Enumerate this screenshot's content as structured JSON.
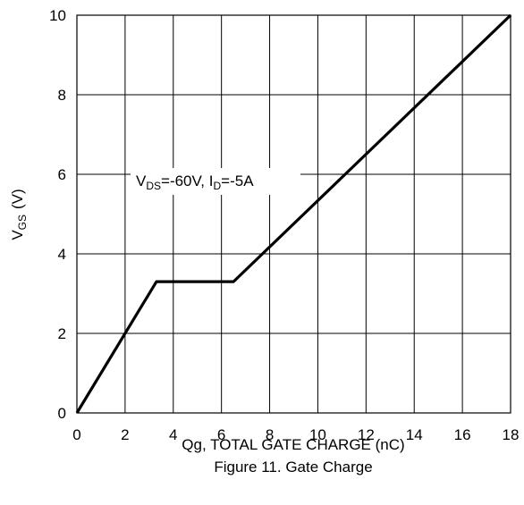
{
  "chart_data": {
    "type": "line",
    "caption": "Figure 11. Gate Charge",
    "xlabel": "Qg, TOTAL GATE CHARGE (nC)",
    "ylabel": {
      "main": "V",
      "sub": "GS",
      "unit": "(V)"
    },
    "annotation": {
      "v": "V",
      "v_sub": "DS",
      "v_val": "=-60V, ",
      "i": "I",
      "i_sub": "D",
      "i_val": "=-5A"
    },
    "xlim": [
      0,
      18
    ],
    "ylim": [
      0,
      10
    ],
    "x_ticks": [
      0,
      2,
      4,
      6,
      8,
      10,
      12,
      14,
      16,
      18
    ],
    "y_ticks": [
      0,
      2,
      4,
      6,
      8,
      10
    ],
    "grid": true,
    "series": [
      {
        "x": [
          0,
          3.3,
          6.5,
          18
        ],
        "y": [
          0,
          3.3,
          3.3,
          10
        ],
        "color": "#000000"
      }
    ]
  }
}
